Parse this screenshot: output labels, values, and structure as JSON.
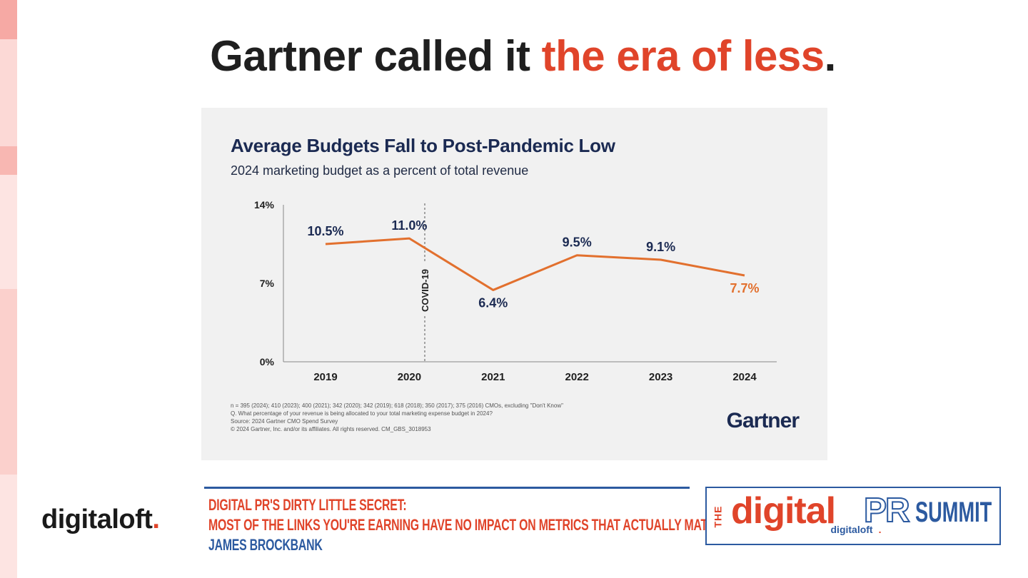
{
  "slide": {
    "title_main": "Gartner called it ",
    "title_accent": "the era of less",
    "title_end": "."
  },
  "colors": {
    "accent": "#e0442a",
    "navy": "#1b2a52",
    "line": "#e2702e",
    "blue": "#2c5aa0"
  },
  "chart_data": {
    "type": "line",
    "title": "Average Budgets Fall to Post-Pandemic Low",
    "subtitle": "2024 marketing budget as a percent of total revenue",
    "categories": [
      "2019",
      "2020",
      "2021",
      "2022",
      "2023",
      "2024"
    ],
    "values": [
      10.5,
      11.0,
      6.4,
      9.5,
      9.1,
      7.7
    ],
    "data_labels": [
      "10.5%",
      "11.0%",
      "6.4%",
      "9.5%",
      "9.1%",
      "7.7%"
    ],
    "yticks": [
      "0%",
      "7%",
      "14%"
    ],
    "ylim": [
      0,
      14
    ],
    "annotation": "COVID-19",
    "xlabel": "",
    "ylabel": "",
    "grid": false,
    "footnotes": [
      "n = 395 (2024); 410 (2023); 400 (2021); 342 (2020); 342 (2019); 618 (2018); 350 (2017); 375 (2016) CMOs, excluding \"Don't Know\"",
      "Q. What percentage of your revenue is being allocated to your total marketing expense budget in 2024?",
      "Source: 2024 Gartner CMO Spend Survey",
      "© 2024 Gartner, Inc. and/or its affiliates. All rights reserved. CM_GBS_3018953"
    ],
    "logo": "Gartner"
  },
  "footer": {
    "brand_name": "digitaloft",
    "brand_dot": ".",
    "talk_line1": "DIGITAL PR'S DIRTY LITTLE SECRET:",
    "talk_line2": "MOST OF THE LINKS YOU'RE EARNING HAVE NO IMPACT ON METRICS THAT ACTUALLY MATTER",
    "speaker": "JAMES BROCKBANK",
    "summit_the": "THE",
    "summit_digital": "digital",
    "summit_pr": "PR",
    "summit_summit": "SUMMIT",
    "summit_sub": "digitaloft",
    "summit_sub_dot": "."
  }
}
